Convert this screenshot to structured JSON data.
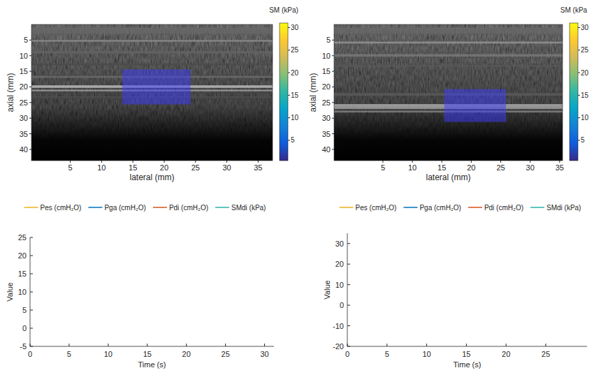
{
  "chart_data": [
    {
      "type": "image",
      "xlabel": "lateral (mm)",
      "ylabel": "axial (mm)",
      "xlim": [
        -1.2,
        37.3
      ],
      "xticks": [
        5,
        10,
        15,
        20,
        25,
        30,
        35
      ],
      "ylim": [
        0,
        43.6
      ],
      "yticks": [
        5,
        10,
        15,
        20,
        25,
        30,
        35,
        40
      ],
      "roi": {
        "x": [
          13.3,
          24.2
        ],
        "y": [
          14.4,
          25.6
        ]
      },
      "colorbar": {
        "title": "SM (kPa)",
        "clim": [
          0.5,
          31
        ],
        "ticks": [
          5,
          10,
          15,
          20,
          25,
          30
        ]
      }
    },
    {
      "type": "image",
      "xlabel": "lateral (mm)",
      "ylabel": "axial (mm)",
      "xlim": [
        -3.3,
        35.5
      ],
      "xticks": [
        5,
        10,
        15,
        20,
        25,
        30,
        35
      ],
      "ylim": [
        0,
        43.6
      ],
      "yticks": [
        5,
        10,
        15,
        20,
        25,
        30,
        35,
        40
      ],
      "roi": {
        "x": [
          15.4,
          25.9
        ],
        "y": [
          20.7,
          31.2
        ]
      },
      "colorbar": {
        "title": "SM (kPa",
        "clim": [
          0.5,
          31
        ],
        "ticks": [
          5,
          10,
          15,
          20,
          25,
          30
        ]
      }
    },
    {
      "type": "line",
      "xlabel": "Time (s)",
      "ylabel": "Value",
      "x": [],
      "xlim": [
        0,
        31.2
      ],
      "xticks": [
        0,
        5,
        10,
        15,
        20,
        25,
        30
      ],
      "ylim": [
        -5,
        25
      ],
      "yticks": [
        -5,
        0,
        5,
        10,
        15,
        20,
        25
      ],
      "legend": "top",
      "series": [
        {
          "name": "Pes (cmH₂O)",
          "color": "#edb120",
          "values": []
        },
        {
          "name": "Pga (cmH₂O)",
          "color": "#0072bd",
          "values": []
        },
        {
          "name": "Pdi (cmH₂O)",
          "color": "#d95319",
          "values": []
        },
        {
          "name": "SMdi (kPa)",
          "color": "#2ab3a8",
          "values": []
        }
      ]
    },
    {
      "type": "line",
      "xlabel": "Time (s)",
      "ylabel": "Value",
      "x": [],
      "xlim": [
        0,
        30.2
      ],
      "xticks": [
        0,
        5,
        10,
        15,
        20,
        25
      ],
      "ylim": [
        -20,
        35
      ],
      "yticks": [
        -20,
        -10,
        0,
        10,
        20,
        30
      ],
      "legend": "top",
      "series": [
        {
          "name": "Pes (cmH₂O)",
          "color": "#edb120",
          "values": []
        },
        {
          "name": "Pga (cmH₂O)",
          "color": "#0072bd",
          "values": []
        },
        {
          "name": "Pdi (cmH₂O)",
          "color": "#d95319",
          "values": []
        },
        {
          "name": "SMdi (kPa)",
          "color": "#2ab3a8",
          "values": []
        }
      ]
    }
  ]
}
